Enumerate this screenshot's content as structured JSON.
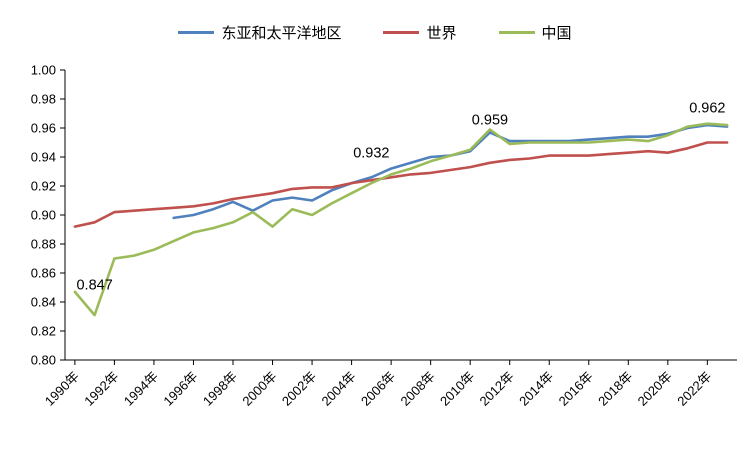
{
  "chart_data": {
    "type": "line",
    "title": "",
    "x_suffix": "年",
    "categories": [
      1990,
      1991,
      1992,
      1993,
      1994,
      1995,
      1996,
      1997,
      1998,
      1999,
      2000,
      2001,
      2002,
      2003,
      2004,
      2005,
      2006,
      2007,
      2008,
      2009,
      2010,
      2011,
      2012,
      2013,
      2014,
      2015,
      2016,
      2017,
      2018,
      2019,
      2020,
      2021,
      2022,
      2023
    ],
    "ylim": [
      0.8,
      1.0
    ],
    "ytick": 0.02,
    "grid": false,
    "legend_position": "top",
    "series": [
      {
        "id": "east-asia-pacific",
        "name": "东亚和太平洋地区",
        "color": "#4F81BD",
        "values": [
          null,
          null,
          null,
          null,
          null,
          0.898,
          0.9,
          0.904,
          0.909,
          0.903,
          0.91,
          0.912,
          0.91,
          0.917,
          0.922,
          0.926,
          0.932,
          0.936,
          0.94,
          0.941,
          0.944,
          0.957,
          0.951,
          0.951,
          0.951,
          0.951,
          0.952,
          0.953,
          0.954,
          0.954,
          0.956,
          0.96,
          0.962,
          0.961
        ]
      },
      {
        "id": "world",
        "name": "世界",
        "color": "#C0504D",
        "values": [
          0.892,
          0.895,
          0.902,
          0.903,
          0.904,
          0.905,
          0.906,
          0.908,
          0.911,
          0.913,
          0.915,
          0.918,
          0.919,
          0.919,
          0.922,
          0.924,
          0.926,
          0.928,
          0.929,
          0.931,
          0.933,
          0.936,
          0.938,
          0.939,
          0.941,
          0.941,
          0.941,
          0.942,
          0.943,
          0.944,
          0.943,
          0.946,
          0.95,
          0.95
        ]
      },
      {
        "id": "china",
        "name": "中国",
        "color": "#9BBB59",
        "values": [
          0.847,
          0.831,
          0.87,
          0.872,
          0.876,
          0.882,
          0.888,
          0.891,
          0.895,
          0.902,
          0.892,
          0.904,
          0.9,
          0.908,
          0.915,
          0.922,
          0.928,
          0.932,
          0.937,
          0.941,
          0.945,
          0.959,
          0.949,
          0.95,
          0.95,
          0.95,
          0.95,
          0.951,
          0.952,
          0.951,
          0.955,
          0.961,
          0.963,
          0.962
        ]
      }
    ],
    "annotations": [
      {
        "text": "0.847",
        "year": 1991,
        "value": 0.852
      },
      {
        "text": "0.932",
        "year": 2005,
        "value": 0.943
      },
      {
        "text": "0.959",
        "year": 2011,
        "value": 0.966
      },
      {
        "text": "0.962",
        "year": 2022,
        "value": 0.974
      }
    ]
  }
}
